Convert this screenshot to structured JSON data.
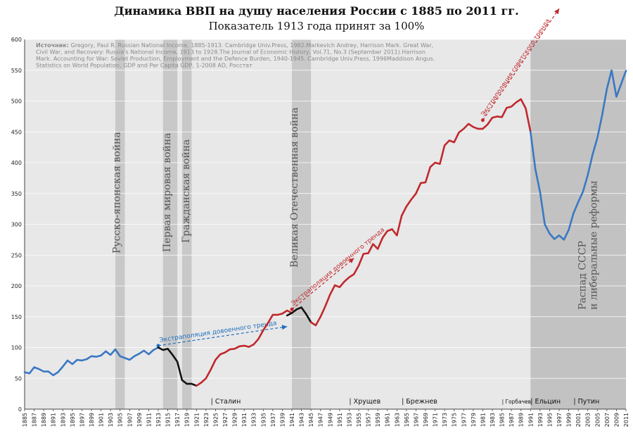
{
  "chart_data": {
    "type": "line",
    "title": "Динамика ВВП на душу населения России с 1885 по 2011 гг.",
    "subtitle": "Показатель 1913 года принят за 100%",
    "ylim": [
      0,
      600
    ],
    "yticks": [
      "0",
      "50",
      "100",
      "150",
      "200",
      "250",
      "300",
      "350",
      "400",
      "450",
      "500",
      "550",
      "600"
    ],
    "xlim": [
      1885,
      2011
    ],
    "xticks": [
      "1885",
      "1887",
      "1889",
      "1891",
      "1893",
      "1895",
      "1897",
      "1899",
      "1901",
      "1903",
      "1905",
      "1907",
      "1909",
      "1911",
      "1913",
      "1915",
      "1917",
      "1919",
      "1921",
      "1923",
      "1925",
      "1927",
      "1929",
      "1931",
      "1933",
      "1935",
      "1937",
      "1939",
      "1941",
      "1943",
      "1945",
      "1947",
      "1949",
      "1951",
      "1953",
      "1955",
      "1957",
      "1959",
      "1961",
      "1963",
      "1965",
      "1967",
      "1969",
      "1971",
      "1973",
      "1975",
      "1977",
      "1979",
      "1981",
      "1983",
      "1985",
      "1987",
      "1989",
      "1991",
      "1993",
      "1995",
      "1997",
      "1999",
      "2001",
      "2003",
      "2005",
      "2007",
      "2009",
      "2011"
    ],
    "grid": true,
    "source_label": "Источник:",
    "source_text": "Gregory, Paul R. Russian National Income, 1885-1913. Cambridge Univ.Press, 1982.Markevich Andrey, Harrison Mark. Great War, Civil War, and Recovery: Russia's National Income, 1913 to 1928.The Journal of Economic History, Vol.71, No.3 (September 2011).Harrison Mark. Accounting for War: Soviet Production, Employment and the Defence Burden, 1940-1945. Cambridge Univ.Press, 1996Maddison Angus. Statistics on World Population, GDP and Per Capita GDP, 1-2008 AD, Росстат",
    "series": [
      {
        "color": "#3a78c3",
        "points": [
          [
            1885,
            60
          ],
          [
            1886,
            58
          ],
          [
            1887,
            68
          ],
          [
            1888,
            65
          ],
          [
            1889,
            61
          ],
          [
            1890,
            61
          ],
          [
            1891,
            55
          ],
          [
            1892,
            60
          ],
          [
            1893,
            69
          ],
          [
            1894,
            79
          ],
          [
            1895,
            73
          ],
          [
            1896,
            80
          ],
          [
            1897,
            79
          ],
          [
            1898,
            81
          ],
          [
            1899,
            86
          ],
          [
            1900,
            85
          ],
          [
            1901,
            87
          ],
          [
            1902,
            94
          ],
          [
            1903,
            88
          ],
          [
            1904,
            97
          ],
          [
            1905,
            86
          ],
          [
            1906,
            83
          ],
          [
            1907,
            80
          ],
          [
            1908,
            86
          ],
          [
            1909,
            90
          ],
          [
            1910,
            95
          ],
          [
            1911,
            89
          ],
          [
            1912,
            96
          ],
          [
            1913,
            100
          ]
        ]
      },
      {
        "color": "#111111",
        "points": [
          [
            1913,
            100
          ],
          [
            1914,
            96
          ],
          [
            1915,
            98
          ],
          [
            1916,
            88
          ],
          [
            1917,
            77
          ],
          [
            1918,
            47
          ],
          [
            1919,
            41
          ],
          [
            1920,
            41
          ],
          [
            1921,
            38
          ]
        ]
      },
      {
        "color": "#c0282d",
        "points": [
          [
            1921,
            38
          ],
          [
            1922,
            43
          ],
          [
            1923,
            50
          ],
          [
            1924,
            64
          ],
          [
            1925,
            80
          ],
          [
            1926,
            89
          ],
          [
            1927,
            92
          ],
          [
            1928,
            97
          ],
          [
            1929,
            98
          ],
          [
            1930,
            102
          ],
          [
            1931,
            103
          ],
          [
            1932,
            101
          ],
          [
            1933,
            105
          ],
          [
            1934,
            114
          ],
          [
            1935,
            128
          ],
          [
            1936,
            140
          ],
          [
            1937,
            153
          ],
          [
            1938,
            153
          ],
          [
            1939,
            155
          ],
          [
            1940,
            160
          ],
          [
            1941,
            156
          ]
        ]
      },
      {
        "color": "#111111",
        "points": [
          [
            1940,
            152
          ],
          [
            1941,
            156
          ],
          [
            1942,
            162
          ],
          [
            1943,
            165
          ],
          [
            1944,
            154
          ],
          [
            1945,
            141
          ]
        ]
      },
      {
        "color": "#c0282d",
        "points": [
          [
            1945,
            141
          ],
          [
            1946,
            136
          ],
          [
            1947,
            150
          ],
          [
            1948,
            167
          ],
          [
            1949,
            186
          ],
          [
            1950,
            201
          ],
          [
            1951,
            198
          ],
          [
            1952,
            207
          ],
          [
            1953,
            214
          ],
          [
            1954,
            219
          ],
          [
            1955,
            233
          ],
          [
            1956,
            252
          ],
          [
            1957,
            253
          ],
          [
            1958,
            268
          ],
          [
            1959,
            260
          ],
          [
            1960,
            278
          ],
          [
            1961,
            289
          ],
          [
            1962,
            292
          ],
          [
            1963,
            282
          ],
          [
            1964,
            314
          ],
          [
            1965,
            329
          ],
          [
            1966,
            340
          ],
          [
            1967,
            350
          ],
          [
            1968,
            367
          ],
          [
            1969,
            368
          ],
          [
            1970,
            393
          ],
          [
            1971,
            400
          ],
          [
            1972,
            398
          ],
          [
            1973,
            428
          ],
          [
            1974,
            436
          ],
          [
            1975,
            433
          ],
          [
            1976,
            449
          ],
          [
            1977,
            455
          ],
          [
            1978,
            463
          ],
          [
            1979,
            458
          ],
          [
            1980,
            455
          ],
          [
            1981,
            455
          ],
          [
            1982,
            462
          ],
          [
            1983,
            473
          ],
          [
            1984,
            475
          ],
          [
            1985,
            474
          ],
          [
            1986,
            489
          ],
          [
            1987,
            491
          ],
          [
            1988,
            498
          ],
          [
            1989,
            503
          ],
          [
            1990,
            488
          ],
          [
            1991,
            450
          ]
        ]
      },
      {
        "color": "#3a78c3",
        "points": [
          [
            1991,
            450
          ],
          [
            1992,
            390
          ],
          [
            1993,
            352
          ],
          [
            1994,
            300
          ],
          [
            1995,
            285
          ],
          [
            1996,
            276
          ],
          [
            1997,
            282
          ],
          [
            1998,
            275
          ],
          [
            1999,
            291
          ],
          [
            2000,
            318
          ],
          [
            2001,
            336
          ],
          [
            2002,
            353
          ],
          [
            2003,
            380
          ],
          [
            2004,
            413
          ],
          [
            2005,
            440
          ],
          [
            2006,
            477
          ],
          [
            2007,
            520
          ],
          [
            2008,
            550
          ],
          [
            2009,
            507
          ],
          [
            2010,
            528
          ],
          [
            2011,
            549
          ]
        ]
      }
    ],
    "trends": [
      {
        "label": "Экстраполяция довоенного тренда",
        "color": "#1f6fbf",
        "from": [
          1913,
          103
        ],
        "to": [
          1940,
          134
        ]
      },
      {
        "label": "Экстраполяция довоенного тренда",
        "color": "#c0282d",
        "from": [
          1941,
          162
        ],
        "to": [
          1954,
          245
        ]
      },
      {
        "label": "Экстраполяция советского тренда",
        "color": "#c0282d",
        "from": [
          1981,
          469
        ],
        "to": [
          1997,
          650
        ]
      }
    ],
    "periods": [
      {
        "label": "Русско-японская война",
        "from": 1904,
        "to": 1906
      },
      {
        "label": "Первая мировая война",
        "from": 1914,
        "to": 1917
      },
      {
        "label": "Гражданская война",
        "from": 1918,
        "to": 1920
      },
      {
        "label": "Великая Отечественная война",
        "from": 1941,
        "to": 1945
      },
      {
        "label": "Распад СССР\nи либеральные реформы",
        "from": 1991,
        "to": 2011
      }
    ],
    "leaders": [
      {
        "label": "| Сталин",
        "year": 1924
      },
      {
        "label": "| Хрущев",
        "year": 1953
      },
      {
        "label": "| Брежнев",
        "year": 1964
      },
      {
        "label": "| Горбачев",
        "year": 1985
      },
      {
        "label": "| Ельцин",
        "year": 1991
      },
      {
        "label": "| Путин",
        "year": 2000
      }
    ]
  }
}
